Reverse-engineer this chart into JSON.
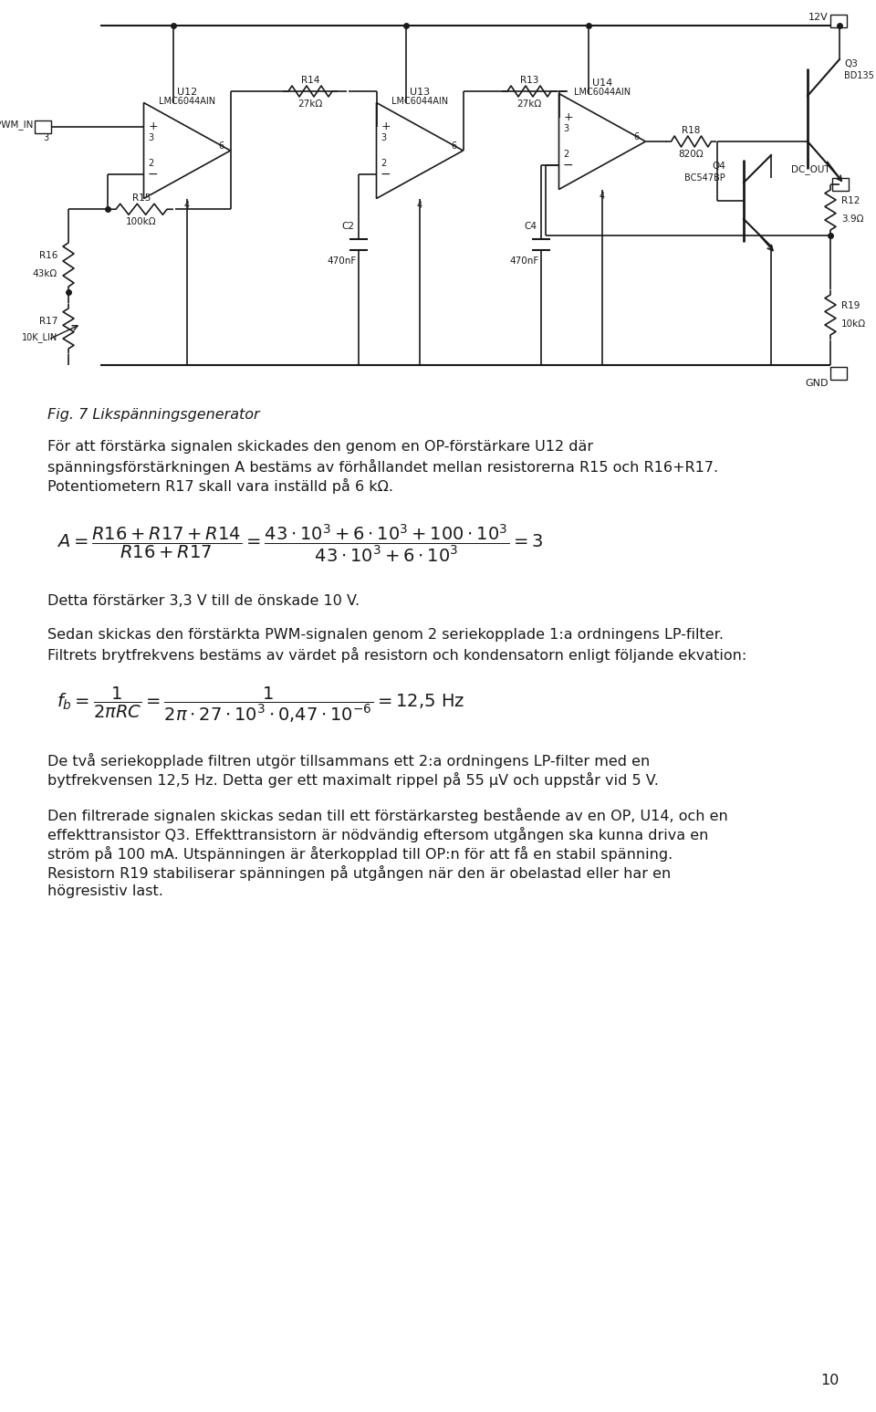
{
  "bg_color": "#ffffff",
  "fig_caption": "Fig. 7 Likspänningsgenerator",
  "para1": "För att förstärka signalen skickades den genom en OP-förstärkare U12 där\nspänningsförstärkningen A bestäms av förhållandet mellan resistorerna R15 och R16+R17.\nPotentiometern R17 skall vara inställd på 6 kΩ.",
  "para2": "Detta förstärker 3,3 V till de önskade 10 V.",
  "para3": "Sedan skickas den förstärkta PWM-signalen genom 2 seriekopplade 1:a ordningens LP-filter.\nFiltrets brytfrekvens bestäms av värdet på resistorn och kondensatorn enligt följande ekvation:",
  "para4": "De två seriekopplade filtren utgör tillsammans ett 2:a ordningens LP-filter med en\nbytfrekvensen 12,5 Hz. Detta ger ett maximalt rippel på 55 μV och uppstår vid 5 V.",
  "para5": "Den filtrerade signalen skickas sedan till ett förstärkarsteg bestående av en OP, U14, och en\neffekttransistor Q3. Effekttransistorn är nödvändig eftersom utgången ska kunna driva en\nström på 100 mA. Utspänningen är återkopplad till OP:n för att få en stabil spänning.\nResistorn R19 stabiliserar spänningen på utgången när den är obelastad eller har en\nhögresistiv last.",
  "page_number": "10",
  "font_color": "#1a1a1a",
  "font_size_body": 11.5,
  "font_size_caption": 11.5
}
